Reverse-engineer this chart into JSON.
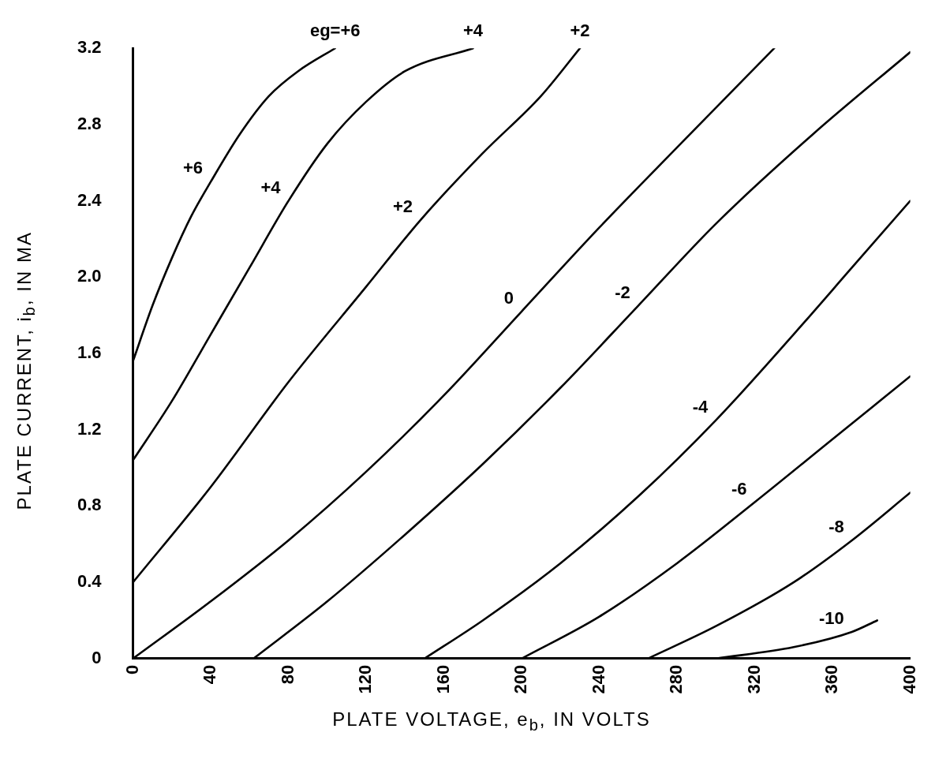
{
  "chart_data": {
    "type": "line",
    "xlabel": "PLATE VOLTAGE, e$_{b}$, IN VOLTS",
    "ylabel": "PLATE CURRENT, i$_{b}$, IN MA",
    "xlim": [
      0,
      400
    ],
    "ylim": [
      0,
      3.2
    ],
    "xticks": [
      0,
      40,
      80,
      120,
      160,
      200,
      240,
      280,
      320,
      360,
      400
    ],
    "yticks": [
      0,
      0.4,
      0.8,
      1.2,
      1.6,
      {
        "value": 2,
        "label": "2.0"
      },
      2.4,
      2.8,
      3.2
    ],
    "grid": false,
    "legend": false,
    "marker": "none",
    "line_style": "solid",
    "series": [
      {
        "name": "+6",
        "color": "#000000",
        "x": [
          0,
          10,
          20,
          30,
          40,
          55,
          70,
          85,
          104
        ],
        "values": [
          1.56,
          1.85,
          2.1,
          2.32,
          2.5,
          2.75,
          2.95,
          3.08,
          3.2
        ]
      },
      {
        "name": "+4",
        "color": "#000000",
        "x": [
          0,
          20,
          40,
          60,
          80,
          100,
          120,
          140,
          175
        ],
        "values": [
          1.04,
          1.35,
          1.7,
          2.05,
          2.4,
          2.7,
          2.92,
          3.08,
          3.2
        ]
      },
      {
        "name": "+2",
        "color": "#000000",
        "x": [
          0,
          40,
          80,
          120,
          148,
          180,
          210,
          230
        ],
        "values": [
          0.4,
          0.9,
          1.45,
          1.95,
          2.3,
          2.65,
          2.95,
          3.2
        ]
      },
      {
        "name": "0",
        "color": "#000000",
        "x": [
          0,
          40,
          80,
          120,
          160,
          200,
          240,
          280,
          330
        ],
        "values": [
          0,
          0.3,
          0.62,
          0.98,
          1.38,
          1.82,
          2.26,
          2.68,
          3.2
        ]
      },
      {
        "name": "-2",
        "color": "#000000",
        "x": [
          62,
          100,
          140,
          180,
          220,
          260,
          300,
          350,
          400
        ],
        "values": [
          0,
          0.3,
          0.65,
          1.02,
          1.42,
          1.85,
          2.28,
          2.75,
          3.18
        ]
      },
      {
        "name": "-4",
        "color": "#000000",
        "x": [
          150,
          180,
          220,
          260,
          300,
          340,
          370,
          400
        ],
        "values": [
          0,
          0.2,
          0.5,
          0.85,
          1.25,
          1.7,
          2.05,
          2.4
        ]
      },
      {
        "name": "-6",
        "color": "#000000",
        "x": [
          200,
          240,
          280,
          320,
          360,
          400
        ],
        "values": [
          0,
          0.22,
          0.5,
          0.82,
          1.15,
          1.48
        ]
      },
      {
        "name": "-8",
        "color": "#000000",
        "x": [
          265,
          300,
          340,
          370,
          400
        ],
        "values": [
          0,
          0.17,
          0.4,
          0.62,
          0.87
        ]
      },
      {
        "name": "-10",
        "color": "#000000",
        "x": [
          300,
          340,
          370,
          383
        ],
        "values": [
          0,
          0.06,
          0.14,
          0.2
        ]
      }
    ],
    "annotations": [
      {
        "text": "eg=+6",
        "x": 104,
        "y": 3.2
      },
      {
        "text": "+4",
        "x": 175,
        "y": 3.2
      },
      {
        "text": "+2",
        "x": 230,
        "y": 3.2
      }
    ]
  }
}
